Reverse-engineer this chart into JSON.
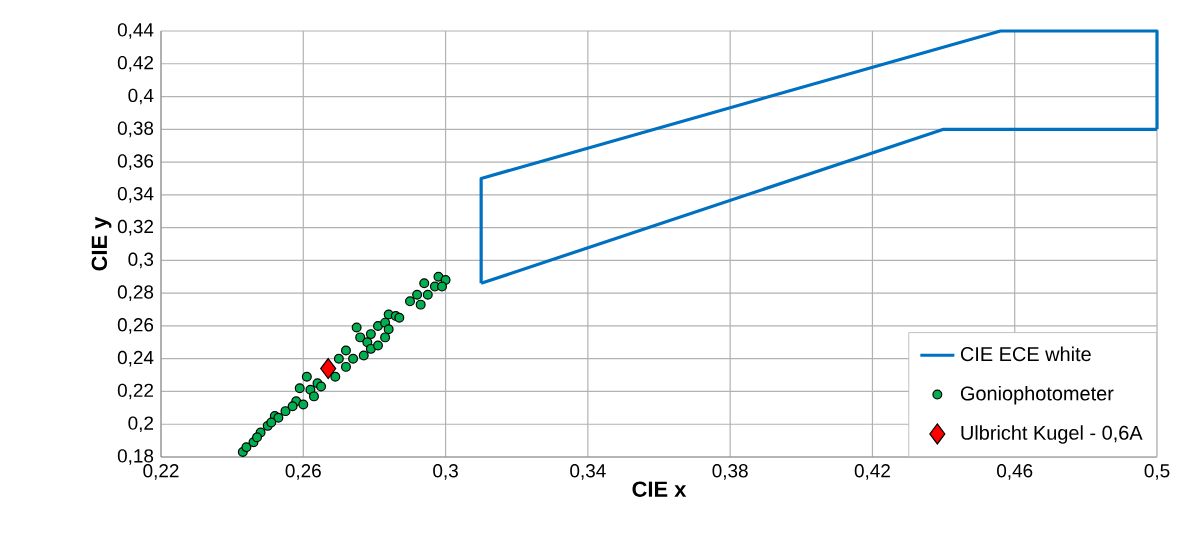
{
  "chart_data": {
    "type": "scatter",
    "xlabel": "CIE x",
    "ylabel": "CIE y",
    "xlim": [
      0.22,
      0.5
    ],
    "ylim": [
      0.18,
      0.44
    ],
    "xticks": [
      {
        "value": 0.22,
        "label": "0,22"
      },
      {
        "value": 0.26,
        "label": "0,26"
      },
      {
        "value": 0.3,
        "label": "0,3"
      },
      {
        "value": 0.34,
        "label": "0,34"
      },
      {
        "value": 0.38,
        "label": "0,38"
      },
      {
        "value": 0.42,
        "label": "0,42"
      },
      {
        "value": 0.46,
        "label": "0,46"
      },
      {
        "value": 0.5,
        "label": "0,5"
      }
    ],
    "yticks": [
      {
        "value": 0.18,
        "label": "0,18"
      },
      {
        "value": 0.2,
        "label": "0,2"
      },
      {
        "value": 0.22,
        "label": "0,22"
      },
      {
        "value": 0.24,
        "label": "0,24"
      },
      {
        "value": 0.26,
        "label": "0,26"
      },
      {
        "value": 0.28,
        "label": "0,28"
      },
      {
        "value": 0.3,
        "label": "0,3"
      },
      {
        "value": 0.32,
        "label": "0,32"
      },
      {
        "value": 0.34,
        "label": "0,34"
      },
      {
        "value": 0.36,
        "label": "0,36"
      },
      {
        "value": 0.38,
        "label": "0,38"
      },
      {
        "value": 0.4,
        "label": "0,4"
      },
      {
        "value": 0.42,
        "label": "0,42"
      },
      {
        "value": 0.44,
        "label": "0,44"
      }
    ],
    "grid": true,
    "legend": "bottom right",
    "series": [
      {
        "name": "CIE ECE white",
        "type": "line",
        "color": "#0070c0",
        "marker": "none",
        "line_style": "solid",
        "x": [
          0.31,
          0.31,
          0.456,
          0.5,
          0.5
        ],
        "values": [
          0.286,
          0.35,
          0.44,
          0.44,
          0.38
        ]
      },
      {
        "type": "line",
        "color": "#0070c0",
        "marker": "none",
        "line_style": "solid",
        "x": [
          0.5,
          0.44,
          0.31
        ],
        "values": [
          0.38,
          0.38,
          0.286
        ]
      },
      {
        "name": "Goniophotometer",
        "color": "#00b050",
        "marker": "circle",
        "x": [
          0.243,
          0.244,
          0.246,
          0.248,
          0.25,
          0.252,
          0.255,
          0.253,
          0.258,
          0.26,
          0.259,
          0.261,
          0.262,
          0.264,
          0.265,
          0.269,
          0.27,
          0.272,
          0.274,
          0.275,
          0.276,
          0.278,
          0.279,
          0.279,
          0.281,
          0.283,
          0.281,
          0.284,
          0.286,
          0.287,
          0.284,
          0.283,
          0.29,
          0.293,
          0.292,
          0.294,
          0.295,
          0.297,
          0.298,
          0.3,
          0.299,
          0.277,
          0.272,
          0.263,
          0.257,
          0.251,
          0.247
        ],
        "values": [
          0.183,
          0.186,
          0.189,
          0.195,
          0.199,
          0.205,
          0.208,
          0.204,
          0.214,
          0.212,
          0.222,
          0.229,
          0.221,
          0.225,
          0.223,
          0.229,
          0.24,
          0.245,
          0.24,
          0.259,
          0.253,
          0.25,
          0.255,
          0.246,
          0.26,
          0.262,
          0.248,
          0.267,
          0.266,
          0.265,
          0.258,
          0.253,
          0.275,
          0.273,
          0.279,
          0.286,
          0.279,
          0.284,
          0.29,
          0.288,
          0.284,
          0.242,
          0.235,
          0.217,
          0.211,
          0.201,
          0.192
        ]
      },
      {
        "name": "Ulbricht Kugel - 0,6A",
        "color": "#ff0000",
        "marker": "diamond",
        "x": [
          0.267
        ],
        "values": [
          0.234
        ]
      }
    ]
  }
}
